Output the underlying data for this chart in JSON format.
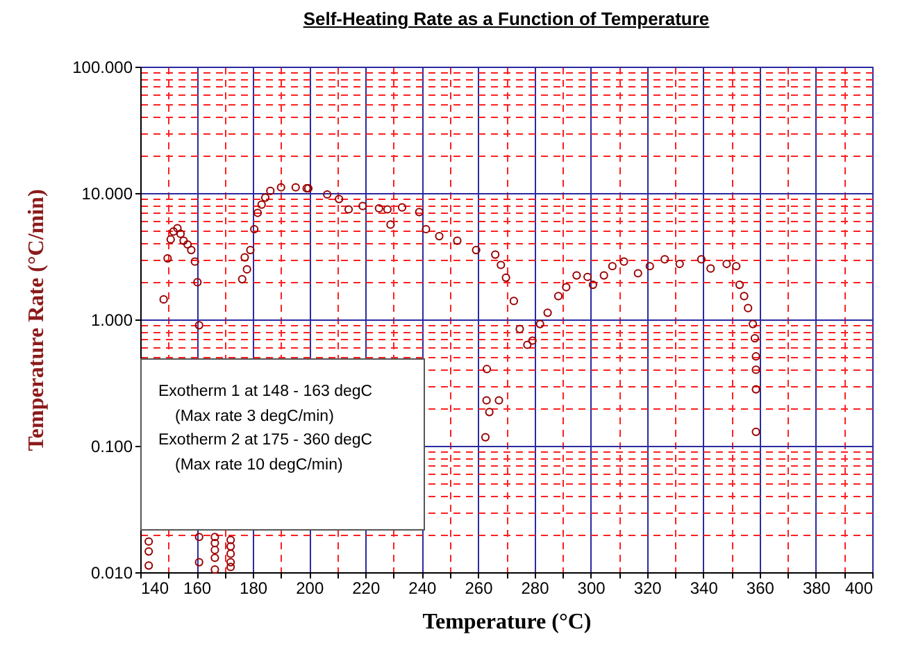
{
  "chart_data": {
    "type": "scatter",
    "title": "Self-Heating Rate as a Function of Temperature",
    "xlabel": "Temperature (°C)",
    "ylabel": "Temperature Rate (°C/min)",
    "annotations": [
      "Exotherm 1 at 148 - 163 degC",
      "(Max rate 3 degC/min)",
      "Exotherm 2 at 175 - 360 degC",
      "(Max rate 10 degC/min)"
    ],
    "log": "y",
    "grid": true,
    "marker": "circle",
    "xlim": [
      140,
      400
    ],
    "xticks": [
      140,
      {
        "value": 150,
        "label": null
      },
      160,
      {
        "value": 170,
        "label": null
      },
      180,
      {
        "value": 190,
        "label": null
      },
      200,
      {
        "value": 210,
        "label": null
      },
      220,
      {
        "value": 230,
        "label": null
      },
      240,
      {
        "value": 250,
        "label": null
      },
      260,
      {
        "value": 270,
        "label": null
      },
      280,
      {
        "value": 290,
        "label": null
      },
      300,
      {
        "value": 310,
        "label": null
      },
      320,
      {
        "value": 330,
        "label": null
      },
      340,
      {
        "value": 350,
        "label": null
      },
      360,
      {
        "value": 370,
        "label": null
      },
      380,
      {
        "value": 390,
        "label": null
      },
      400
    ],
    "ylim": [
      0.01,
      100
    ],
    "yticks": [
      {
        "value": 0.01,
        "label": "0.010"
      },
      {
        "value": 0.02,
        "label": null
      },
      {
        "value": 0.03,
        "label": null
      },
      {
        "value": 0.04,
        "label": null
      },
      {
        "value": 0.05,
        "label": null
      },
      {
        "value": 0.06,
        "label": null
      },
      {
        "value": 0.07,
        "label": null
      },
      {
        "value": 0.08,
        "label": null
      },
      {
        "value": 0.09,
        "label": null
      },
      {
        "value": 0.1,
        "label": "0.100"
      },
      {
        "value": 0.2,
        "label": null
      },
      {
        "value": 0.3,
        "label": null
      },
      {
        "value": 0.4,
        "label": null
      },
      {
        "value": 0.5,
        "label": null
      },
      {
        "value": 0.6,
        "label": null
      },
      {
        "value": 0.7,
        "label": null
      },
      {
        "value": 0.8,
        "label": null
      },
      {
        "value": 0.9,
        "label": null
      },
      {
        "value": 1,
        "label": "1.000"
      },
      {
        "value": 2,
        "label": null
      },
      {
        "value": 3,
        "label": null
      },
      {
        "value": 4,
        "label": null
      },
      {
        "value": 5,
        "label": null
      },
      {
        "value": 6,
        "label": null
      },
      {
        "value": 7,
        "label": null
      },
      {
        "value": 8,
        "label": null
      },
      {
        "value": 9,
        "label": null
      },
      {
        "value": 10,
        "label": "10.000"
      },
      {
        "value": 20,
        "label": null
      },
      {
        "value": 30,
        "label": null
      },
      {
        "value": 40,
        "label": null
      },
      {
        "value": 50,
        "label": null
      },
      {
        "value": 60,
        "label": null
      },
      {
        "value": 70,
        "label": null
      },
      {
        "value": 80,
        "label": null
      },
      {
        "value": 90,
        "label": null
      },
      {
        "value": 100,
        "label": "100.000"
      }
    ],
    "series": [
      {
        "color": "#990000",
        "x": [
          143,
          143,
          143,
          148.3,
          149.7,
          150.8,
          151.8,
          153.2,
          154.3,
          155.4,
          156.8,
          158.1,
          159.4,
          160.3,
          160.9,
          160.9,
          160.9,
          166.5,
          166.5,
          166.5,
          166.5,
          166.5,
          172.1,
          172.1,
          172.1,
          172.1,
          172.1,
          176.2,
          177.1,
          177.9,
          179.1,
          180.5,
          181.7,
          183.1,
          184.4,
          186.2,
          190,
          195.2,
          199.1,
          199.7,
          206.4,
          210.6,
          214,
          219,
          224.8,
          227.8,
          228.9,
          233,
          239.1,
          241.5,
          246.2,
          252.6,
          259.3,
          262.6,
          263,
          263.1,
          264,
          266.1,
          267.4,
          268.1,
          269.9,
          272.7,
          274.8,
          277.5,
          279.3,
          282,
          284.7,
          288.5,
          291.3,
          295,
          298.9,
          300.8,
          304.7,
          307.7,
          311.8,
          316.8,
          321,
          326.3,
          331.6,
          339.3,
          342.6,
          348.3,
          351.7,
          352.9,
          354.5,
          355.9,
          357.6,
          358.3,
          358.7,
          358.7,
          358.7,
          358.7
        ],
        "values": [
          0.0175,
          0.0146,
          0.0113,
          1.44,
          3.04,
          4.3,
          4.96,
          5.27,
          4.76,
          4.2,
          3.92,
          3.54,
          2.87,
          1.97,
          0.9,
          0.019,
          0.012,
          0.019,
          0.017,
          0.015,
          0.013,
          0.0105,
          0.018,
          0.016,
          0.014,
          0.012,
          0.011,
          2.08,
          3.1,
          2.49,
          3.54,
          5.18,
          6.97,
          8.1,
          9.2,
          10.4,
          11.1,
          11.1,
          10.9,
          10.9,
          9.75,
          8.97,
          7.43,
          7.9,
          7.57,
          7.43,
          5.63,
          7.7,
          7.07,
          5.18,
          4.56,
          4.2,
          3.54,
          0.117,
          0.229,
          0.405,
          0.185,
          3.26,
          0.229,
          2.7,
          2.14,
          1.4,
          0.84,
          0.63,
          0.68,
          0.92,
          1.13,
          1.53,
          1.8,
          2.23,
          2.17,
          1.88,
          2.23,
          2.64,
          2.87,
          2.32,
          2.64,
          2.99,
          2.75,
          2.99,
          2.53,
          2.75,
          2.64,
          1.88,
          1.53,
          1.23,
          0.92,
          0.71,
          0.51,
          0.4,
          0.28,
          0.129
        ]
      }
    ]
  }
}
